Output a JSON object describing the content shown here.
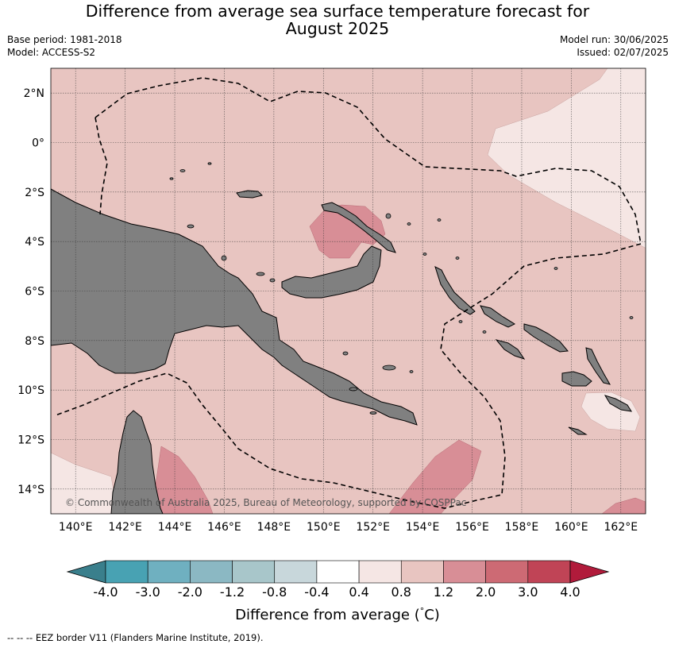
{
  "header": {
    "title_line1": "Difference from average sea surface temperature forecast for",
    "title_line2": "August 2025",
    "base_period": "Base period: 1981-2018",
    "model": "Model: ACCESS-S2",
    "model_run": "Model run: 30/06/2025",
    "issued": "Issued: 02/07/2025"
  },
  "map": {
    "lon_range": [
      139,
      163
    ],
    "lat_range": [
      -15,
      3
    ],
    "lat_ticks": [
      {
        "value": 2,
        "label": "2°N"
      },
      {
        "value": 0,
        "label": "0°"
      },
      {
        "value": -2,
        "label": "2°S"
      },
      {
        "value": -4,
        "label": "4°S"
      },
      {
        "value": -6,
        "label": "6°S"
      },
      {
        "value": -8,
        "label": "8°S"
      },
      {
        "value": -10,
        "label": "10°S"
      },
      {
        "value": -12,
        "label": "12°S"
      },
      {
        "value": -14,
        "label": "14°S"
      }
    ],
    "lon_ticks": [
      {
        "value": 140,
        "label": "140°E"
      },
      {
        "value": 142,
        "label": "142°E"
      },
      {
        "value": 144,
        "label": "144°E"
      },
      {
        "value": 146,
        "label": "146°E"
      },
      {
        "value": 148,
        "label": "148°E"
      },
      {
        "value": 150,
        "label": "150°E"
      },
      {
        "value": 152,
        "label": "152°E"
      },
      {
        "value": 154,
        "label": "154°E"
      },
      {
        "value": 156,
        "label": "156°E"
      },
      {
        "value": 158,
        "label": "158°E"
      },
      {
        "value": 160,
        "label": "160°E"
      },
      {
        "value": 162,
        "label": "162°E"
      }
    ],
    "gridlines": true,
    "land_color": "#808080",
    "background_anomaly_color": "#e8c5c1",
    "copyright": "© Commonwealth of Australia 2025, Bureau of Meteorology, supported by COSPPac"
  },
  "colorbar": {
    "title": "Difference from average (°C)",
    "title_text": "Difference from average (",
    "title_unit": "C)",
    "boundaries": [
      "-4.0",
      "-3.0",
      "-2.0",
      "-1.2",
      "-0.8",
      "-0.4",
      "0.4",
      "0.8",
      "1.2",
      "2.0",
      "3.0",
      "4.0"
    ],
    "colors": [
      "#3a7f8c",
      "#48a2b3",
      "#6fb0c0",
      "#8bb8c3",
      "#a8c6ca",
      "#c8d7db",
      "#ffffff",
      "#f5e6e4",
      "#e8c5c1",
      "#d88e96",
      "#cd6a74",
      "#c04456",
      "#b11b3b"
    ]
  },
  "footer": {
    "legend_text": "--  --  -- EEZ border V11 (Flanders Marine Institute, 2019)."
  }
}
